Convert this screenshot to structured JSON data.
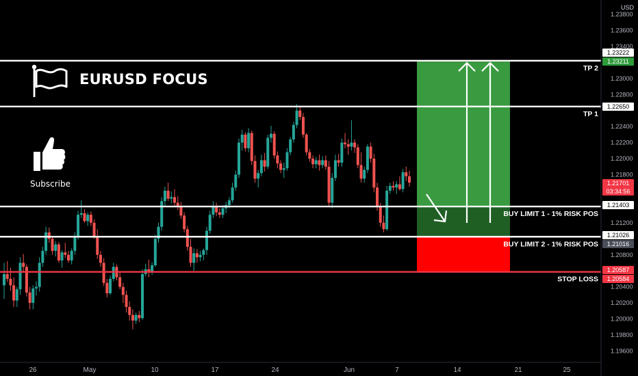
{
  "header": {
    "title": "EURUSD FOCUS",
    "subscribe_label": "Subscribe",
    "currency": "USD"
  },
  "icons": [
    "flag-icon",
    "thumbs-up-icon"
  ],
  "colors": {
    "up": "#26a69a",
    "down": "#ef5350",
    "line": "#ffffff",
    "stop": "#f23645",
    "tp_zone": "#3a9a40",
    "entry_zone": "#1f5f24",
    "sl_zone": "#ff0000"
  },
  "chart_data": {
    "type": "candlestick",
    "title": "EURUSD FOCUS",
    "yaxis": {
      "ticks": [
        "1.23800",
        "1.23600",
        "1.23400",
        "1.23000",
        "1.22800",
        "1.22400",
        "1.22200",
        "1.22000",
        "1.21800",
        "1.21200",
        "1.20800",
        "1.20400",
        "1.20200",
        "1.20000",
        "1.19800",
        "1.19600"
      ],
      "ylim": [
        1.195,
        1.239
      ]
    },
    "xaxis": {
      "ticks": [
        "26",
        "May",
        "10",
        "17",
        "24",
        "Jun",
        "7",
        "14",
        "21",
        "25"
      ]
    },
    "price_labels": [
      {
        "label": "1.23222",
        "value": 1.23222,
        "style": "white"
      },
      {
        "label": "1.23211",
        "value": 1.23211,
        "style": "green"
      },
      {
        "label": "1.22650",
        "value": 1.2265,
        "style": "white"
      },
      {
        "label": "1.21701",
        "sublabel": "03:34:56",
        "value": 1.21701,
        "style": "red"
      },
      {
        "label": "1.21403",
        "value": 1.21403,
        "style": "white"
      },
      {
        "label": "1.21026",
        "value": 1.21026,
        "style": "white"
      },
      {
        "label": "1.21016",
        "value": 1.21016,
        "style": "gray"
      },
      {
        "label": "1.20587",
        "value": 1.20587,
        "style": "red"
      },
      {
        "label": "1.20584",
        "value": 1.20584,
        "style": "red"
      }
    ],
    "levels": [
      {
        "name": "TP 2",
        "value": 1.23222,
        "color": "#ffffff"
      },
      {
        "name": "TP 1",
        "value": 1.2265,
        "color": "#ffffff"
      },
      {
        "name": "BUY LIMIT 1 - 1% RISK POS",
        "value": 1.21403,
        "color": "#ffffff"
      },
      {
        "name": "BUY LIMIT 2 - 1% RISK POS",
        "value": 1.21026,
        "color": "#ffffff"
      },
      {
        "name": "STOP LOSS",
        "value": 1.20587,
        "color": "#f23645"
      }
    ],
    "zones": [
      {
        "type": "take-profit",
        "from": 1.21403,
        "to": 1.23211
      },
      {
        "type": "entry",
        "from": 1.21026,
        "to": 1.21403
      },
      {
        "type": "stop-loss",
        "from": 1.20587,
        "to": 1.21026
      }
    ],
    "candles": [
      [
        1.2042,
        1.207,
        1.2025,
        1.2056
      ],
      [
        1.2056,
        1.2072,
        1.2046,
        1.205
      ],
      [
        1.205,
        1.2064,
        1.2035,
        1.2042
      ],
      [
        1.2042,
        1.2052,
        1.2015,
        1.2023
      ],
      [
        1.2023,
        1.204,
        1.2015,
        1.2037
      ],
      [
        1.2037,
        1.2077,
        1.203,
        1.207
      ],
      [
        1.207,
        1.2081,
        1.2058,
        1.2065
      ],
      [
        1.2065,
        1.2068,
        1.2028,
        1.2033
      ],
      [
        1.2033,
        1.204,
        1.2012,
        1.202
      ],
      [
        1.202,
        1.2042,
        1.2012,
        1.2038
      ],
      [
        1.2038,
        1.2047,
        1.2029,
        1.204
      ],
      [
        1.204,
        1.2077,
        1.2034,
        1.207
      ],
      [
        1.207,
        1.209,
        1.2065,
        1.2085
      ],
      [
        1.2085,
        1.2115,
        1.208,
        1.2108
      ],
      [
        1.2108,
        1.2114,
        1.2095,
        1.21
      ],
      [
        1.21,
        1.2102,
        1.208,
        1.2085
      ],
      [
        1.2085,
        1.2097,
        1.2078,
        1.2093
      ],
      [
        1.2093,
        1.2096,
        1.207,
        1.2073
      ],
      [
        1.2073,
        1.2086,
        1.2064,
        1.2083
      ],
      [
        1.2083,
        1.2095,
        1.2076,
        1.208
      ],
      [
        1.208,
        1.2085,
        1.207,
        1.2073
      ],
      [
        1.2073,
        1.2088,
        1.2068,
        1.2085
      ],
      [
        1.2085,
        1.2108,
        1.208,
        1.2103
      ],
      [
        1.2103,
        1.2135,
        1.2099,
        1.213
      ],
      [
        1.213,
        1.2148,
        1.2126,
        1.2132
      ],
      [
        1.2132,
        1.2137,
        1.212,
        1.2122
      ],
      [
        1.2122,
        1.2133,
        1.2116,
        1.213
      ],
      [
        1.213,
        1.2134,
        1.2116,
        1.212
      ],
      [
        1.212,
        1.2124,
        1.21,
        1.2103
      ],
      [
        1.2103,
        1.2112,
        1.2075,
        1.208
      ],
      [
        1.208,
        1.2085,
        1.2065,
        1.207
      ],
      [
        1.207,
        1.2076,
        1.2041,
        1.2045
      ],
      [
        1.2045,
        1.205,
        1.2027,
        1.2032
      ],
      [
        1.2032,
        1.2054,
        1.203,
        1.205
      ],
      [
        1.205,
        1.207,
        1.2047,
        1.2065
      ],
      [
        1.2065,
        1.2068,
        1.2048,
        1.2052
      ],
      [
        1.2052,
        1.2058,
        1.2037,
        1.204
      ],
      [
        1.204,
        1.2045,
        1.202,
        1.203
      ],
      [
        1.203,
        1.2035,
        1.2008,
        1.2015
      ],
      [
        1.2015,
        1.2022,
        1.1998,
        1.2005
      ],
      [
        1.2005,
        1.2012,
        1.1987,
        1.1998
      ],
      [
        1.1998,
        1.2008,
        1.1994,
        1.2005
      ],
      [
        1.2005,
        1.201,
        1.1996,
        1.2001
      ],
      [
        1.2001,
        1.2062,
        1.1999,
        1.2056
      ],
      [
        1.2056,
        1.2069,
        1.2053,
        1.2062
      ],
      [
        1.2062,
        1.2074,
        1.2052,
        1.2059
      ],
      [
        1.2059,
        1.2071,
        1.2055,
        1.2067
      ],
      [
        1.2067,
        1.2105,
        1.2065,
        1.21
      ],
      [
        1.21,
        1.212,
        1.2095,
        1.2115
      ],
      [
        1.2115,
        1.2152,
        1.211,
        1.2147
      ],
      [
        1.2147,
        1.2165,
        1.214,
        1.216
      ],
      [
        1.216,
        1.217,
        1.2147,
        1.215
      ],
      [
        1.215,
        1.2159,
        1.2144,
        1.2152
      ],
      [
        1.2152,
        1.2162,
        1.214,
        1.2145
      ],
      [
        1.2145,
        1.2153,
        1.2136,
        1.214
      ],
      [
        1.214,
        1.2146,
        1.2125,
        1.2129
      ],
      [
        1.2129,
        1.2133,
        1.2108,
        1.2112
      ],
      [
        1.2112,
        1.2116,
        1.2085,
        1.209
      ],
      [
        1.209,
        1.21,
        1.2065,
        1.207
      ],
      [
        1.207,
        1.2088,
        1.206,
        1.2082
      ],
      [
        1.2082,
        1.2087,
        1.207,
        1.2077
      ],
      [
        1.2077,
        1.2085,
        1.2072,
        1.208
      ],
      [
        1.208,
        1.2088,
        1.2073,
        1.2086
      ],
      [
        1.2086,
        1.2115,
        1.208,
        1.211
      ],
      [
        1.211,
        1.2135,
        1.2106,
        1.213
      ],
      [
        1.213,
        1.2147,
        1.2126,
        1.2141
      ],
      [
        1.2141,
        1.2145,
        1.2128,
        1.2133
      ],
      [
        1.2133,
        1.2138,
        1.2126,
        1.213
      ],
      [
        1.213,
        1.2142,
        1.2126,
        1.2138
      ],
      [
        1.2138,
        1.2146,
        1.2132,
        1.2142
      ],
      [
        1.2142,
        1.2152,
        1.2138,
        1.2148
      ],
      [
        1.2148,
        1.217,
        1.2145,
        1.2164
      ],
      [
        1.2164,
        1.2185,
        1.216,
        1.218
      ],
      [
        1.218,
        1.2225,
        1.2176,
        1.222
      ],
      [
        1.222,
        1.2236,
        1.221,
        1.223
      ],
      [
        1.223,
        1.2233,
        1.2209,
        1.2213
      ],
      [
        1.2213,
        1.2238,
        1.2208,
        1.2232
      ],
      [
        1.2232,
        1.2235,
        1.2192,
        1.2197
      ],
      [
        1.2197,
        1.2204,
        1.217,
        1.2175
      ],
      [
        1.2175,
        1.2186,
        1.2164,
        1.2182
      ],
      [
        1.2182,
        1.2205,
        1.2178,
        1.2198
      ],
      [
        1.2198,
        1.2207,
        1.2184,
        1.219
      ],
      [
        1.219,
        1.223,
        1.2187,
        1.2226
      ],
      [
        1.2226,
        1.2241,
        1.222,
        1.2231
      ],
      [
        1.2231,
        1.2234,
        1.22,
        1.2204
      ],
      [
        1.2204,
        1.2209,
        1.2188,
        1.2194
      ],
      [
        1.2194,
        1.2198,
        1.2182,
        1.2186
      ],
      [
        1.2186,
        1.2195,
        1.2176,
        1.2188
      ],
      [
        1.2188,
        1.2213,
        1.2185,
        1.2208
      ],
      [
        1.2208,
        1.2227,
        1.2204,
        1.2224
      ],
      [
        1.2224,
        1.2246,
        1.222,
        1.2242
      ],
      [
        1.2242,
        1.2268,
        1.2238,
        1.226
      ],
      [
        1.226,
        1.2265,
        1.2248,
        1.2252
      ],
      [
        1.2252,
        1.2257,
        1.2226,
        1.223
      ],
      [
        1.223,
        1.2232,
        1.2204,
        1.2208
      ],
      [
        1.2208,
        1.2212,
        1.2196,
        1.22
      ],
      [
        1.22,
        1.2204,
        1.2188,
        1.2193
      ],
      [
        1.2193,
        1.2202,
        1.2188,
        1.2198
      ],
      [
        1.2198,
        1.2205,
        1.2185,
        1.2192
      ],
      [
        1.2192,
        1.2203,
        1.2188,
        1.2198
      ],
      [
        1.2198,
        1.2204,
        1.2186,
        1.219
      ],
      [
        1.219,
        1.2197,
        1.214,
        1.2145
      ],
      [
        1.2145,
        1.2182,
        1.2138,
        1.2176
      ],
      [
        1.2176,
        1.2205,
        1.2172,
        1.2198
      ],
      [
        1.2198,
        1.2206,
        1.219,
        1.2195
      ],
      [
        1.2195,
        1.2225,
        1.219,
        1.222
      ],
      [
        1.222,
        1.2232,
        1.2213,
        1.2218
      ],
      [
        1.2218,
        1.2224,
        1.2205,
        1.2215
      ],
      [
        1.2215,
        1.2248,
        1.221,
        1.222
      ],
      [
        1.222,
        1.2224,
        1.2207,
        1.2214
      ],
      [
        1.2214,
        1.2218,
        1.2188,
        1.2192
      ],
      [
        1.2192,
        1.2208,
        1.217,
        1.2175
      ],
      [
        1.2175,
        1.219,
        1.217,
        1.2186
      ],
      [
        1.2186,
        1.2218,
        1.2182,
        1.2215
      ],
      [
        1.2215,
        1.222,
        1.2195,
        1.22
      ],
      [
        1.22,
        1.2206,
        1.2158,
        1.2164
      ],
      [
        1.2164,
        1.217,
        1.2135,
        1.214
      ],
      [
        1.214,
        1.2145,
        1.2115,
        1.212
      ],
      [
        1.212,
        1.2129,
        1.2108,
        1.2112
      ],
      [
        1.2112,
        1.2166,
        1.211,
        1.216
      ],
      [
        1.216,
        1.217,
        1.2156,
        1.2166
      ],
      [
        1.2166,
        1.2172,
        1.216,
        1.2164
      ],
      [
        1.2164,
        1.2172,
        1.2156,
        1.2168
      ],
      [
        1.2168,
        1.2178,
        1.216,
        1.2162
      ],
      [
        1.2162,
        1.2187,
        1.2158,
        1.2183
      ],
      [
        1.2183,
        1.219,
        1.2172,
        1.2178
      ],
      [
        1.2178,
        1.2185,
        1.2165,
        1.21701
      ]
    ]
  }
}
